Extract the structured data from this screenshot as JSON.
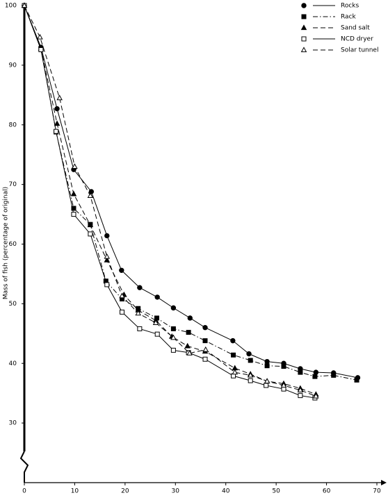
{
  "chart_data": {
    "type": "line",
    "y_label": "Mass of fish (percentage of original)",
    "xlim": [
      0,
      70
    ],
    "xticks": [
      0,
      10,
      20,
      30,
      40,
      50,
      60,
      70
    ],
    "ylim": [
      20,
      100
    ],
    "yticks": [
      30,
      40,
      50,
      60,
      70,
      80,
      90,
      100
    ],
    "grid": false,
    "legend": "top-right",
    "series": [
      {
        "name": "Rocks",
        "color": "#000000",
        "marker": "circle",
        "dash": "solid",
        "x": [
          0,
          3.3,
          6.5,
          9.8,
          13.3,
          16.4,
          19.3,
          22.9,
          26.4,
          29.6,
          32.9,
          35.9,
          41.4,
          44.6,
          48.2,
          51.5,
          54.8,
          57.9,
          61.4,
          66.2
        ],
        "values": [
          100,
          93,
          82.7,
          72.5,
          68.8,
          61.4,
          55.6,
          52.7,
          51.1,
          49.3,
          47.6,
          46.0,
          43.8,
          41.6,
          40.3,
          40.0,
          39.1,
          38.5,
          38.4,
          37.6
        ]
      },
      {
        "name": "Rack",
        "color": "#000000",
        "marker": "square",
        "dash": "dashdot",
        "x": [
          0,
          3.3,
          6.3,
          9.8,
          13.1,
          16.2,
          19.4,
          22.6,
          26.3,
          29.6,
          32.6,
          35.9,
          41.5,
          44.9,
          48.2,
          51.5,
          54.8,
          57.7,
          61.4,
          66.0
        ],
        "values": [
          100,
          92.8,
          78.8,
          66.0,
          63.3,
          53.8,
          50.8,
          49.2,
          47.6,
          45.8,
          45.2,
          43.8,
          41.4,
          40.5,
          39.6,
          39.5,
          38.5,
          37.8,
          38.0,
          37.2
        ]
      },
      {
        "name": "Sand salt",
        "color": "#000000",
        "marker": "triangle",
        "dash": "dashed",
        "x": [
          0,
          3.3,
          6.5,
          9.8,
          13.1,
          16.4,
          19.8,
          22.6,
          26.1,
          29.3,
          32.4,
          35.9,
          41.8,
          44.9,
          48.2,
          51.5,
          54.8,
          57.9
        ],
        "values": [
          100,
          92.8,
          80.2,
          68.4,
          63.2,
          57.3,
          51.5,
          48.9,
          47.2,
          44.5,
          42.9,
          42.0,
          39.2,
          38.2,
          37.0,
          36.6,
          35.8,
          34.8
        ]
      },
      {
        "name": "NCD dryer",
        "color": "#000000",
        "marker": "square-open",
        "dash": "solid",
        "x": [
          0,
          3.3,
          6.3,
          9.8,
          13.1,
          16.4,
          19.4,
          22.9,
          26.4,
          29.6,
          32.6,
          35.9,
          41.5,
          44.9,
          48.0,
          51.5,
          54.8,
          57.7
        ],
        "values": [
          100,
          92.6,
          78.9,
          65.0,
          61.7,
          53.2,
          48.6,
          45.8,
          44.9,
          42.2,
          41.8,
          40.7,
          37.9,
          37.1,
          36.3,
          35.7,
          34.6,
          34.2
        ]
      },
      {
        "name": "Solar tunnel",
        "color": "#000000",
        "marker": "triangle-open",
        "dash": "dashed",
        "x": [
          0,
          3.1,
          7.0,
          10.0,
          13.1,
          16.4,
          19.4,
          22.6,
          26.1,
          29.6,
          32.8,
          36.0,
          41.8,
          44.9,
          48.2,
          51.5,
          54.8,
          57.9
        ],
        "values": [
          100,
          94.7,
          84.5,
          73.0,
          68.1,
          57.9,
          51.3,
          48.4,
          46.8,
          44.3,
          41.7,
          42.3,
          38.5,
          38.0,
          37.0,
          36.3,
          35.5,
          34.5
        ]
      }
    ]
  }
}
